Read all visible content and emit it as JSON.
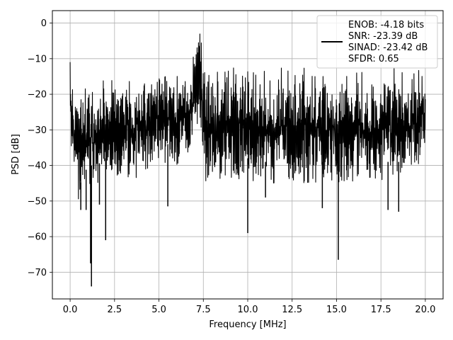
{
  "chart_data": {
    "type": "line",
    "xlabel": "Frequency [MHz]",
    "ylabel": "PSD [dB]",
    "xlim": [
      -1.0,
      21.0
    ],
    "ylim": [
      -77.5,
      3.5
    ],
    "xticks": [
      0.0,
      2.5,
      5.0,
      7.5,
      10.0,
      12.5,
      15.0,
      17.5,
      20.0
    ],
    "xtick_labels": [
      "0.0",
      "2.5",
      "5.0",
      "7.5",
      "10.0",
      "12.5",
      "15.0",
      "17.5",
      "20.0"
    ],
    "yticks": [
      0,
      -10,
      -20,
      -30,
      -40,
      -50,
      -60,
      -70
    ],
    "ytick_labels": [
      "0",
      "−10",
      "−20",
      "−30",
      "−40",
      "−50",
      "−60",
      "−70"
    ],
    "grid": true,
    "legend_position": "upper right",
    "series_color": "#000000",
    "legend": {
      "lines": [
        "ENOB: -4.18 bits",
        "SNR: -23.39 dB",
        "SINAD: -23.42 dB",
        "SFDR: 0.65"
      ]
    },
    "series": [
      {
        "x": [
          0.0,
          0.02,
          0.05,
          0.1,
          0.2,
          0.3,
          0.5,
          0.75,
          1.0,
          1.5,
          2.0,
          2.5,
          3.0,
          3.5,
          4.0,
          4.5,
          5.0,
          5.5,
          6.0,
          6.5,
          6.8,
          7.0,
          7.2,
          7.3,
          7.4,
          7.5,
          7.8,
          8.0,
          8.5,
          9.0,
          9.5,
          10.0,
          10.5,
          11.0,
          11.5,
          12.0,
          12.5,
          13.0,
          13.5,
          14.0,
          14.5,
          15.0,
          15.5,
          16.0,
          16.5,
          17.0,
          17.5,
          18.0,
          18.5,
          19.0,
          19.5,
          20.0
        ],
        "upper": [
          -1,
          -12,
          -11,
          -17,
          -21,
          -20,
          -17,
          -17,
          -17,
          -16,
          -16,
          -15,
          -15,
          -14,
          -14,
          -13,
          -13,
          -13,
          -13,
          -12,
          -10,
          -5,
          -2,
          0,
          -4,
          -12,
          -12,
          -12,
          -12,
          -12,
          -12,
          -12,
          -12,
          -12,
          -12,
          -12,
          -12,
          -12,
          -12,
          -12,
          -12,
          -12,
          -12,
          -12,
          -12,
          -12,
          -12,
          -12,
          -12,
          -12,
          -12,
          -14
        ],
        "lower": [
          -40,
          -30,
          -40,
          -35,
          -42,
          -40,
          -52,
          -49,
          -46,
          -46,
          -44,
          -45,
          -43,
          -44,
          -43,
          -41,
          -41,
          -40,
          -40,
          -38,
          -35,
          -30,
          -28,
          -28,
          -30,
          -44,
          -45,
          -43,
          -45,
          -44,
          -44,
          -44,
          -45,
          -45,
          -45,
          -45,
          -45,
          -45,
          -45,
          -45,
          -45,
          -45,
          -45,
          -45,
          -45,
          -45,
          -45,
          -45,
          -45,
          -45,
          -42,
          -33
        ],
        "spikes": [
          {
            "x": 0.6,
            "y": -52.5
          },
          {
            "x": 0.9,
            "y": -52.5
          },
          {
            "x": 1.15,
            "y": -67.5
          },
          {
            "x": 1.2,
            "y": -74.0
          },
          {
            "x": 1.65,
            "y": -51.0
          },
          {
            "x": 2.0,
            "y": -61.0
          },
          {
            "x": 5.5,
            "y": -51.5
          },
          {
            "x": 10.0,
            "y": -59.0
          },
          {
            "x": 11.0,
            "y": -49.0
          },
          {
            "x": 14.2,
            "y": -52.0
          },
          {
            "x": 15.1,
            "y": -66.5
          },
          {
            "x": 17.9,
            "y": -52.5
          },
          {
            "x": 18.5,
            "y": -53.0
          }
        ]
      }
    ]
  }
}
